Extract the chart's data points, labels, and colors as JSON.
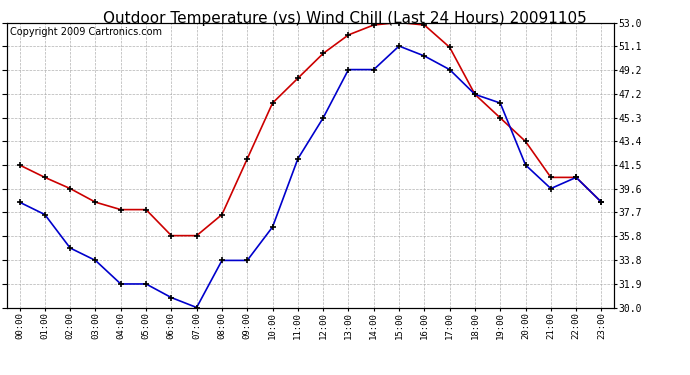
{
  "title": "Outdoor Temperature (vs) Wind Chill (Last 24 Hours) 20091105",
  "copyright": "Copyright 2009 Cartronics.com",
  "x_labels": [
    "00:00",
    "01:00",
    "02:00",
    "03:00",
    "04:00",
    "05:00",
    "06:00",
    "07:00",
    "08:00",
    "09:00",
    "10:00",
    "11:00",
    "12:00",
    "13:00",
    "14:00",
    "15:00",
    "16:00",
    "17:00",
    "18:00",
    "19:00",
    "20:00",
    "21:00",
    "22:00",
    "23:00"
  ],
  "temp_red": [
    41.5,
    40.5,
    39.6,
    38.5,
    37.9,
    37.9,
    35.8,
    35.8,
    37.5,
    42.0,
    46.5,
    48.5,
    50.5,
    52.0,
    52.8,
    53.0,
    52.8,
    51.0,
    47.2,
    45.3,
    43.4,
    40.5,
    40.5,
    38.5
  ],
  "wind_blue": [
    38.5,
    37.5,
    34.8,
    33.8,
    31.9,
    31.9,
    30.8,
    30.0,
    33.8,
    33.8,
    36.5,
    42.0,
    45.3,
    49.2,
    49.2,
    51.1,
    50.3,
    49.2,
    47.2,
    46.5,
    41.5,
    39.6,
    40.5,
    38.5
  ],
  "ylim_min": 30.0,
  "ylim_max": 53.0,
  "yticks": [
    30.0,
    31.9,
    33.8,
    35.8,
    37.7,
    39.6,
    41.5,
    43.4,
    45.3,
    47.2,
    49.2,
    51.1,
    53.0
  ],
  "red_color": "#cc0000",
  "blue_color": "#0000cc",
  "grid_color": "#aaaaaa",
  "bg_color": "#ffffff",
  "title_fontsize": 11,
  "copyright_fontsize": 7
}
